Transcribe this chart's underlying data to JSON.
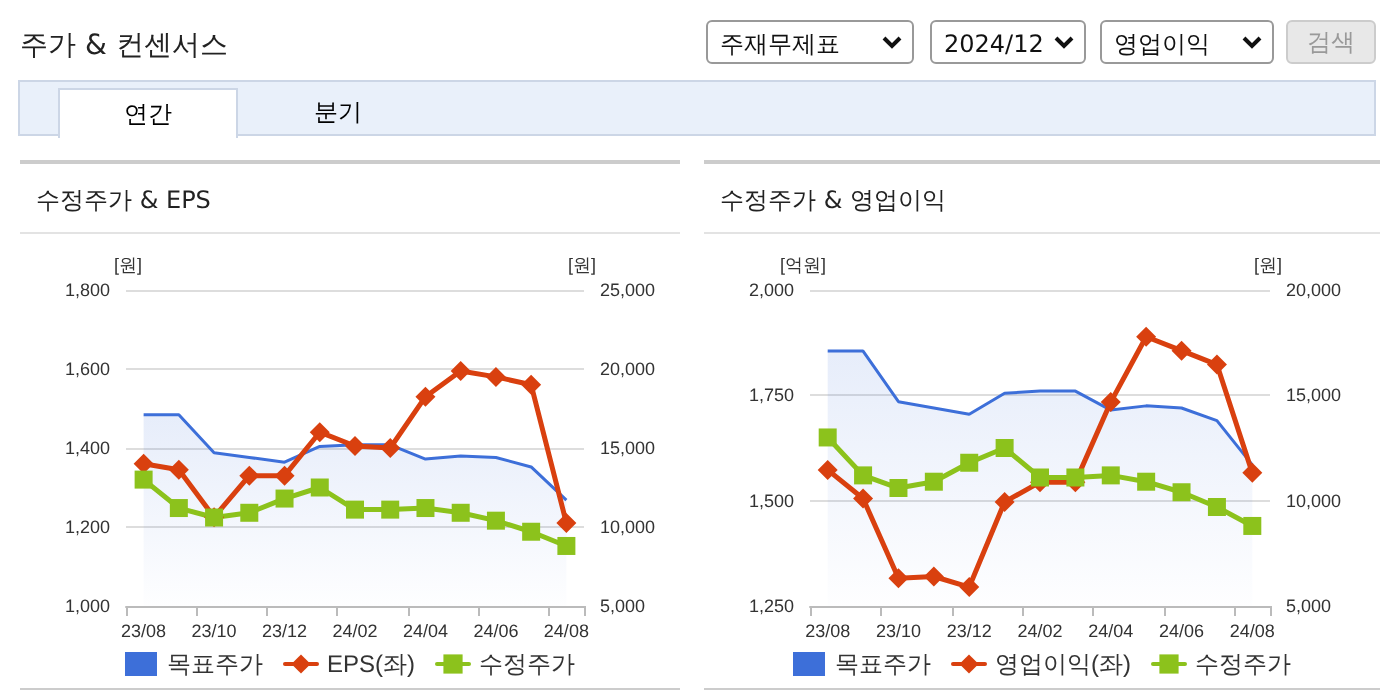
{
  "chart_data": [
    {
      "type": "other",
      "title": "주가 & 컨센서스",
      "annotations": [
        "주재무제표",
        "2024/12",
        "영업이익",
        "검색",
        "연간",
        "분기"
      ]
    },
    {
      "type": "line",
      "title": "수정주가 & EPS",
      "ylabel": "[원]",
      "y2label": "[원]",
      "categories": [
        "23/08",
        null,
        "23/10",
        null,
        "23/12",
        null,
        "24/02",
        null,
        "24/04",
        null,
        "24/06",
        null,
        "24/08"
      ],
      "series": [
        {
          "name": "목표주가",
          "type": "area",
          "axis": "y2",
          "color": "#3d6fd9",
          "values": [
            17100,
            17100,
            14700,
            14400,
            14100,
            15100,
            15200,
            15200,
            14300,
            14500,
            14400,
            13800,
            11700
          ]
        },
        {
          "name": "EPS(좌)",
          "type": "line",
          "marker": "diamond",
          "color": "#d9400f",
          "values": [
            1360,
            1345,
            1225,
            1330,
            1330,
            1440,
            1405,
            1400,
            1530,
            1595,
            1580,
            1560,
            1210
          ]
        },
        {
          "name": "수정주가",
          "type": "line",
          "marker": "square",
          "axis": "y2",
          "color": "#8cc21c",
          "values": [
            13000,
            11200,
            10600,
            10900,
            11800,
            12500,
            11100,
            11100,
            11200,
            10900,
            10400,
            9700,
            8800
          ]
        }
      ],
      "ylim": [
        1000,
        1800
      ],
      "yticks": [
        {
          "value": 1000,
          "label": "1,000"
        },
        {
          "value": 1200,
          "label": "1,200"
        },
        {
          "value": 1400,
          "label": "1,400"
        },
        {
          "value": 1600,
          "label": "1,600"
        },
        {
          "value": 1800,
          "label": "1,800"
        }
      ],
      "y2lim": [
        5000,
        25000
      ],
      "y2ticks": [
        {
          "value": 5000,
          "label": "5,000"
        },
        {
          "value": 10000,
          "label": "10,000"
        },
        {
          "value": 15000,
          "label": "15,000"
        },
        {
          "value": 20000,
          "label": "20,000"
        },
        {
          "value": 25000,
          "label": "25,000"
        }
      ],
      "grid": "y",
      "legend": "bottom"
    },
    {
      "type": "line",
      "title": "수정주가 & 영업이익",
      "ylabel": "[억원]",
      "y2label": "[원]",
      "categories": [
        "23/08",
        null,
        "23/10",
        null,
        "23/12",
        null,
        "24/02",
        null,
        "24/04",
        null,
        "24/06",
        null,
        "24/08"
      ],
      "series": [
        {
          "name": "목표주가",
          "type": "area",
          "axis": "y2",
          "color": "#3d6fd9",
          "values": [
            17100,
            17100,
            14700,
            14400,
            14100,
            15100,
            15200,
            15200,
            14300,
            14500,
            14400,
            13800,
            11700
          ]
        },
        {
          "name": "영업이익(좌)",
          "type": "line",
          "marker": "diamond",
          "color": "#d9400f",
          "values": [
            1573,
            1505,
            1316,
            1320,
            1295,
            1497,
            1544,
            1544,
            1734,
            1889,
            1856,
            1823,
            1566
          ]
        },
        {
          "name": "수정주가",
          "type": "line",
          "marker": "square",
          "axis": "y2",
          "color": "#8cc21c",
          "values": [
            13000,
            11200,
            10600,
            10900,
            11800,
            12500,
            11100,
            11100,
            11200,
            10900,
            10400,
            9700,
            8800
          ]
        }
      ],
      "ylim": [
        1250,
        2000
      ],
      "yticks": [
        {
          "value": 1250,
          "label": "1,250"
        },
        {
          "value": 1500,
          "label": "1,500"
        },
        {
          "value": 1750,
          "label": "1,750"
        },
        {
          "value": 2000,
          "label": "2,000"
        }
      ],
      "y2lim": [
        5000,
        20000
      ],
      "y2ticks": [
        {
          "value": 5000,
          "label": "5,000"
        },
        {
          "value": 10000,
          "label": "10,000"
        },
        {
          "value": 15000,
          "label": "15,000"
        },
        {
          "value": 20000,
          "label": "20,000"
        }
      ],
      "grid": "y",
      "legend": "bottom"
    }
  ]
}
